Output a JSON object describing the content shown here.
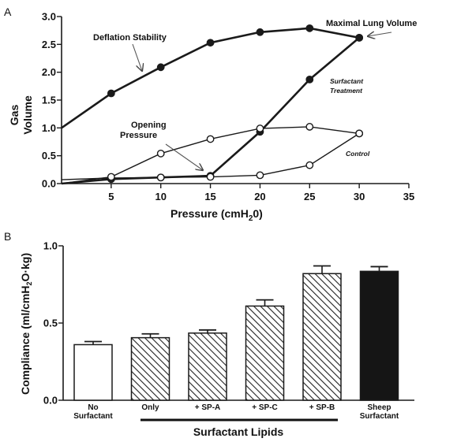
{
  "panel_a_label": "A",
  "panel_b_label": "B",
  "chart_data": [
    {
      "type": "line",
      "xlabel": "Pressure (cmH20)",
      "ylabel": "Gas Volume",
      "xlim": [
        0,
        35
      ],
      "ylim": [
        0,
        3.0
      ],
      "xticks": [
        "5",
        "10",
        "15",
        "20",
        "25",
        "30",
        "35"
      ],
      "yticks": [
        "0.0",
        "0.5",
        "1.0",
        "1.5",
        "2.0",
        "2.5",
        "3.0"
      ],
      "series": [
        {
          "name": "Surfactant Treatment",
          "marker": "filled",
          "inflation": [
            [
              0,
              0.0
            ],
            [
              5,
              0.08
            ],
            [
              10,
              0.11
            ],
            [
              15,
              0.14
            ],
            [
              20,
              0.93
            ],
            [
              25,
              1.87
            ],
            [
              30,
              2.62
            ]
          ],
          "deflation": [
            [
              30,
              2.62
            ],
            [
              25,
              2.79
            ],
            [
              20,
              2.72
            ],
            [
              15,
              2.53
            ],
            [
              10,
              2.09
            ],
            [
              5,
              1.62
            ],
            [
              0,
              1.0
            ]
          ]
        },
        {
          "name": "Control",
          "marker": "open",
          "inflation": [
            [
              0,
              0.07
            ],
            [
              5,
              0.1
            ],
            [
              10,
              0.11
            ],
            [
              15,
              0.12
            ],
            [
              20,
              0.15
            ],
            [
              25,
              0.33
            ],
            [
              30,
              0.9
            ]
          ],
          "deflation": [
            [
              30,
              0.9
            ],
            [
              25,
              1.02
            ],
            [
              20,
              0.99
            ],
            [
              15,
              0.8
            ],
            [
              10,
              0.54
            ],
            [
              5,
              0.12
            ],
            [
              0,
              0.0
            ]
          ]
        }
      ],
      "annotations": {
        "deflation_stability": "Deflation Stability",
        "maximal_lung_volume": "Maximal Lung Volume",
        "opening_pressure": "Opening Pressure",
        "surfactant_treatment": "Surfactant Treatment",
        "control": "Control"
      }
    },
    {
      "type": "bar",
      "ylabel": "Compliance (ml/cmH2O·kg)",
      "ylim": [
        0,
        1.0
      ],
      "yticks": [
        "0.0",
        "0.5",
        "1.0"
      ],
      "categories": [
        "No Surfactant",
        "Only",
        "+ SP-A",
        "+ SP-C",
        "+ SP-B",
        "Sheep Surfactant"
      ],
      "values": [
        0.36,
        0.405,
        0.435,
        0.61,
        0.82,
        0.835
      ],
      "errors": [
        0.02,
        0.025,
        0.02,
        0.04,
        0.05,
        0.03
      ],
      "fills": [
        "open",
        "hatched",
        "hatched",
        "hatched",
        "hatched",
        "solid"
      ],
      "group_label": "Surfactant Lipids"
    }
  ]
}
